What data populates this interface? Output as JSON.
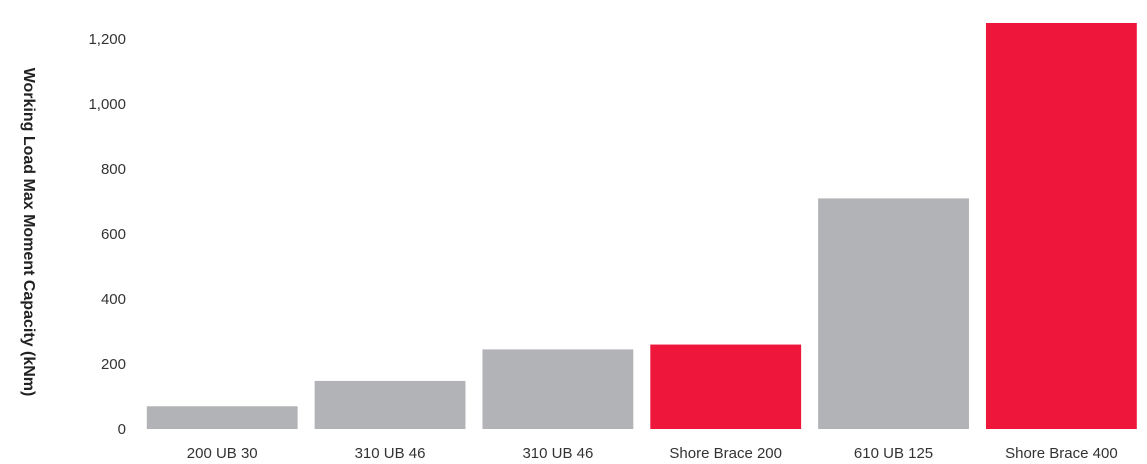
{
  "chart_data": {
    "type": "bar",
    "title": "",
    "xlabel": "",
    "ylabel": "Working Load Max Moment Capacity (kNm)",
    "ylim": [
      0,
      1250
    ],
    "yticks": [
      0,
      200,
      400,
      600,
      800,
      1000,
      1200
    ],
    "ytick_labels": [
      "0",
      "200",
      "400",
      "600",
      "800",
      "1,000",
      "1,200"
    ],
    "grid": false,
    "legend": "none",
    "categories": [
      "200 UB 30",
      "310 UB 46",
      "310 UB 46",
      "Shore Brace 200",
      "610 UB 125",
      "Shore Brace 400"
    ],
    "values": [
      70,
      148,
      245,
      260,
      710,
      1250
    ],
    "bar_colors": [
      "#b1b3b6",
      "#b1b3b6",
      "#b1b3b6",
      "#ee163b",
      "#b1b3b6",
      "#ee163b"
    ]
  }
}
